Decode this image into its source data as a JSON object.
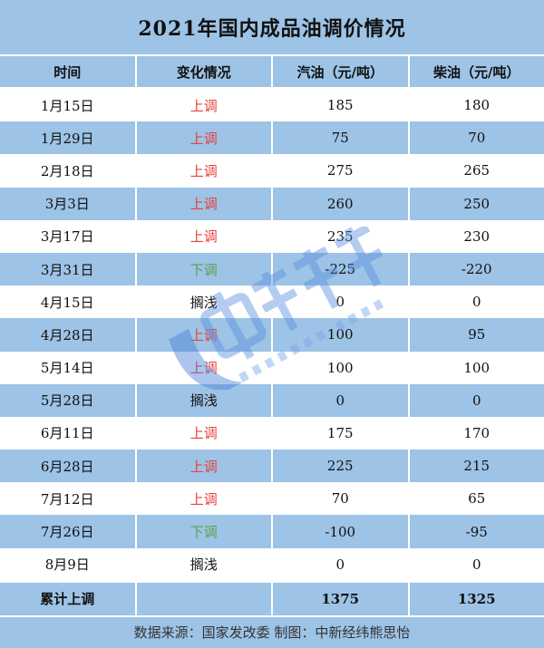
{
  "title": "2021年国内成品油调价情况",
  "headers": [
    "时间",
    "变化情况",
    "汽油（元/吨）",
    "柴油（元/吨）"
  ],
  "colors": {
    "header_bg": "#9dc3e6",
    "up": "#e8413c",
    "down": "#5fa04e"
  },
  "rows": [
    {
      "date": "1月15日",
      "change": "上调",
      "type": "up",
      "gasoline": "185",
      "diesel": "180"
    },
    {
      "date": "1月29日",
      "change": "上调",
      "type": "up",
      "gasoline": "75",
      "diesel": "70"
    },
    {
      "date": "2月18日",
      "change": "上调",
      "type": "up",
      "gasoline": "275",
      "diesel": "265"
    },
    {
      "date": "3月3日",
      "change": "上调",
      "type": "up",
      "gasoline": "260",
      "diesel": "250"
    },
    {
      "date": "3月17日",
      "change": "上调",
      "type": "up",
      "gasoline": "235",
      "diesel": "230"
    },
    {
      "date": "3月31日",
      "change": "下调",
      "type": "down",
      "gasoline": "-225",
      "diesel": "-220"
    },
    {
      "date": "4月15日",
      "change": "搁浅",
      "type": "none",
      "gasoline": "0",
      "diesel": "0"
    },
    {
      "date": "4月28日",
      "change": "上调",
      "type": "up",
      "gasoline": "100",
      "diesel": "95"
    },
    {
      "date": "5月14日",
      "change": "上调",
      "type": "up",
      "gasoline": "100",
      "diesel": "100"
    },
    {
      "date": "5月28日",
      "change": "搁浅",
      "type": "none",
      "gasoline": "0",
      "diesel": "0"
    },
    {
      "date": "6月11日",
      "change": "上调",
      "type": "up",
      "gasoline": "175",
      "diesel": "170"
    },
    {
      "date": "6月28日",
      "change": "上调",
      "type": "up",
      "gasoline": "225",
      "diesel": "215"
    },
    {
      "date": "7月12日",
      "change": "上调",
      "type": "up",
      "gasoline": "70",
      "diesel": "65"
    },
    {
      "date": "7月26日",
      "change": "下调",
      "type": "down",
      "gasoline": "-100",
      "diesel": "-95"
    },
    {
      "date": "8月9日",
      "change": "搁浅",
      "type": "none",
      "gasoline": "0",
      "diesel": "0"
    }
  ],
  "total": {
    "label": "累计上调",
    "change": "",
    "gasoline": "1375",
    "diesel": "1325"
  },
  "footer": "数据来源：国家发改委  制图：中新经纬熊思怡",
  "watermark": {
    "cn": "中新经纬",
    "en": "ECONOMIC VIEW"
  }
}
